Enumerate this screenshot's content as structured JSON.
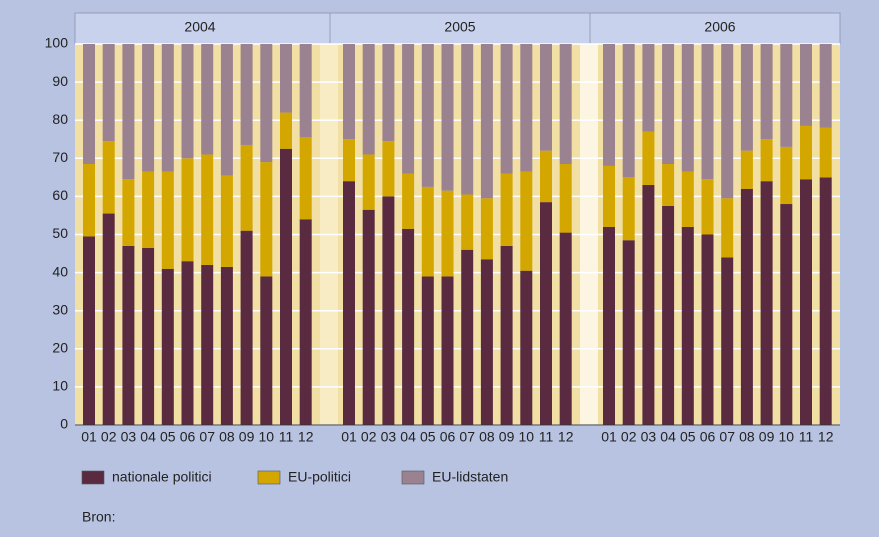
{
  "chart_data": {
    "type": "stacked-bar",
    "groups": [
      "2004",
      "2005",
      "2006"
    ],
    "categories": [
      "01",
      "02",
      "03",
      "04",
      "05",
      "06",
      "07",
      "08",
      "09",
      "10",
      "11",
      "12",
      "01",
      "02",
      "03",
      "04",
      "05",
      "06",
      "07",
      "08",
      "09",
      "10",
      "11",
      "12",
      "01",
      "02",
      "03",
      "04",
      "05",
      "06",
      "07",
      "08",
      "09",
      "10",
      "11",
      "12"
    ],
    "series": [
      {
        "name": "nationale politici",
        "color": "#5a2b40",
        "values": [
          49.5,
          55.5,
          47,
          46.5,
          41,
          43,
          42,
          41.5,
          51,
          39,
          72.5,
          54,
          64,
          56.5,
          60,
          51.5,
          39,
          39,
          46,
          43.5,
          47,
          40.5,
          58.5,
          50.5,
          52,
          48.5,
          63,
          57.5,
          52,
          50,
          44,
          62,
          64,
          58,
          64.5,
          65
        ]
      },
      {
        "name": "EU-politici",
        "color": "#d3a700",
        "values": [
          19,
          19,
          17.5,
          20,
          25.5,
          27,
          29,
          24,
          22.5,
          30,
          9.5,
          21.5,
          11,
          14.5,
          14.5,
          14.5,
          23.5,
          22.5,
          14.5,
          16,
          19,
          26,
          13.5,
          18,
          16,
          16.5,
          14,
          11,
          14.5,
          14.5,
          15.5,
          10,
          11,
          15,
          14,
          13
        ]
      },
      {
        "name": "EU-lidstaten",
        "color": "#9b8291",
        "values": [
          31.5,
          25.5,
          35.5,
          33.5,
          33.5,
          30,
          29,
          34.5,
          26.5,
          31,
          18,
          24.5,
          25,
          29,
          25.5,
          34,
          37.5,
          38.5,
          39.5,
          40.5,
          34,
          33.5,
          28,
          31.5,
          32,
          35,
          23,
          31.5,
          33.5,
          35.5,
          40.5,
          28,
          25,
          27,
          21.5,
          22
        ]
      }
    ],
    "ylim": [
      0,
      100
    ],
    "yticks": [
      0,
      10,
      20,
      30,
      40,
      50,
      60,
      70,
      80,
      90,
      100
    ],
    "grid": true,
    "source": "Bron:"
  }
}
